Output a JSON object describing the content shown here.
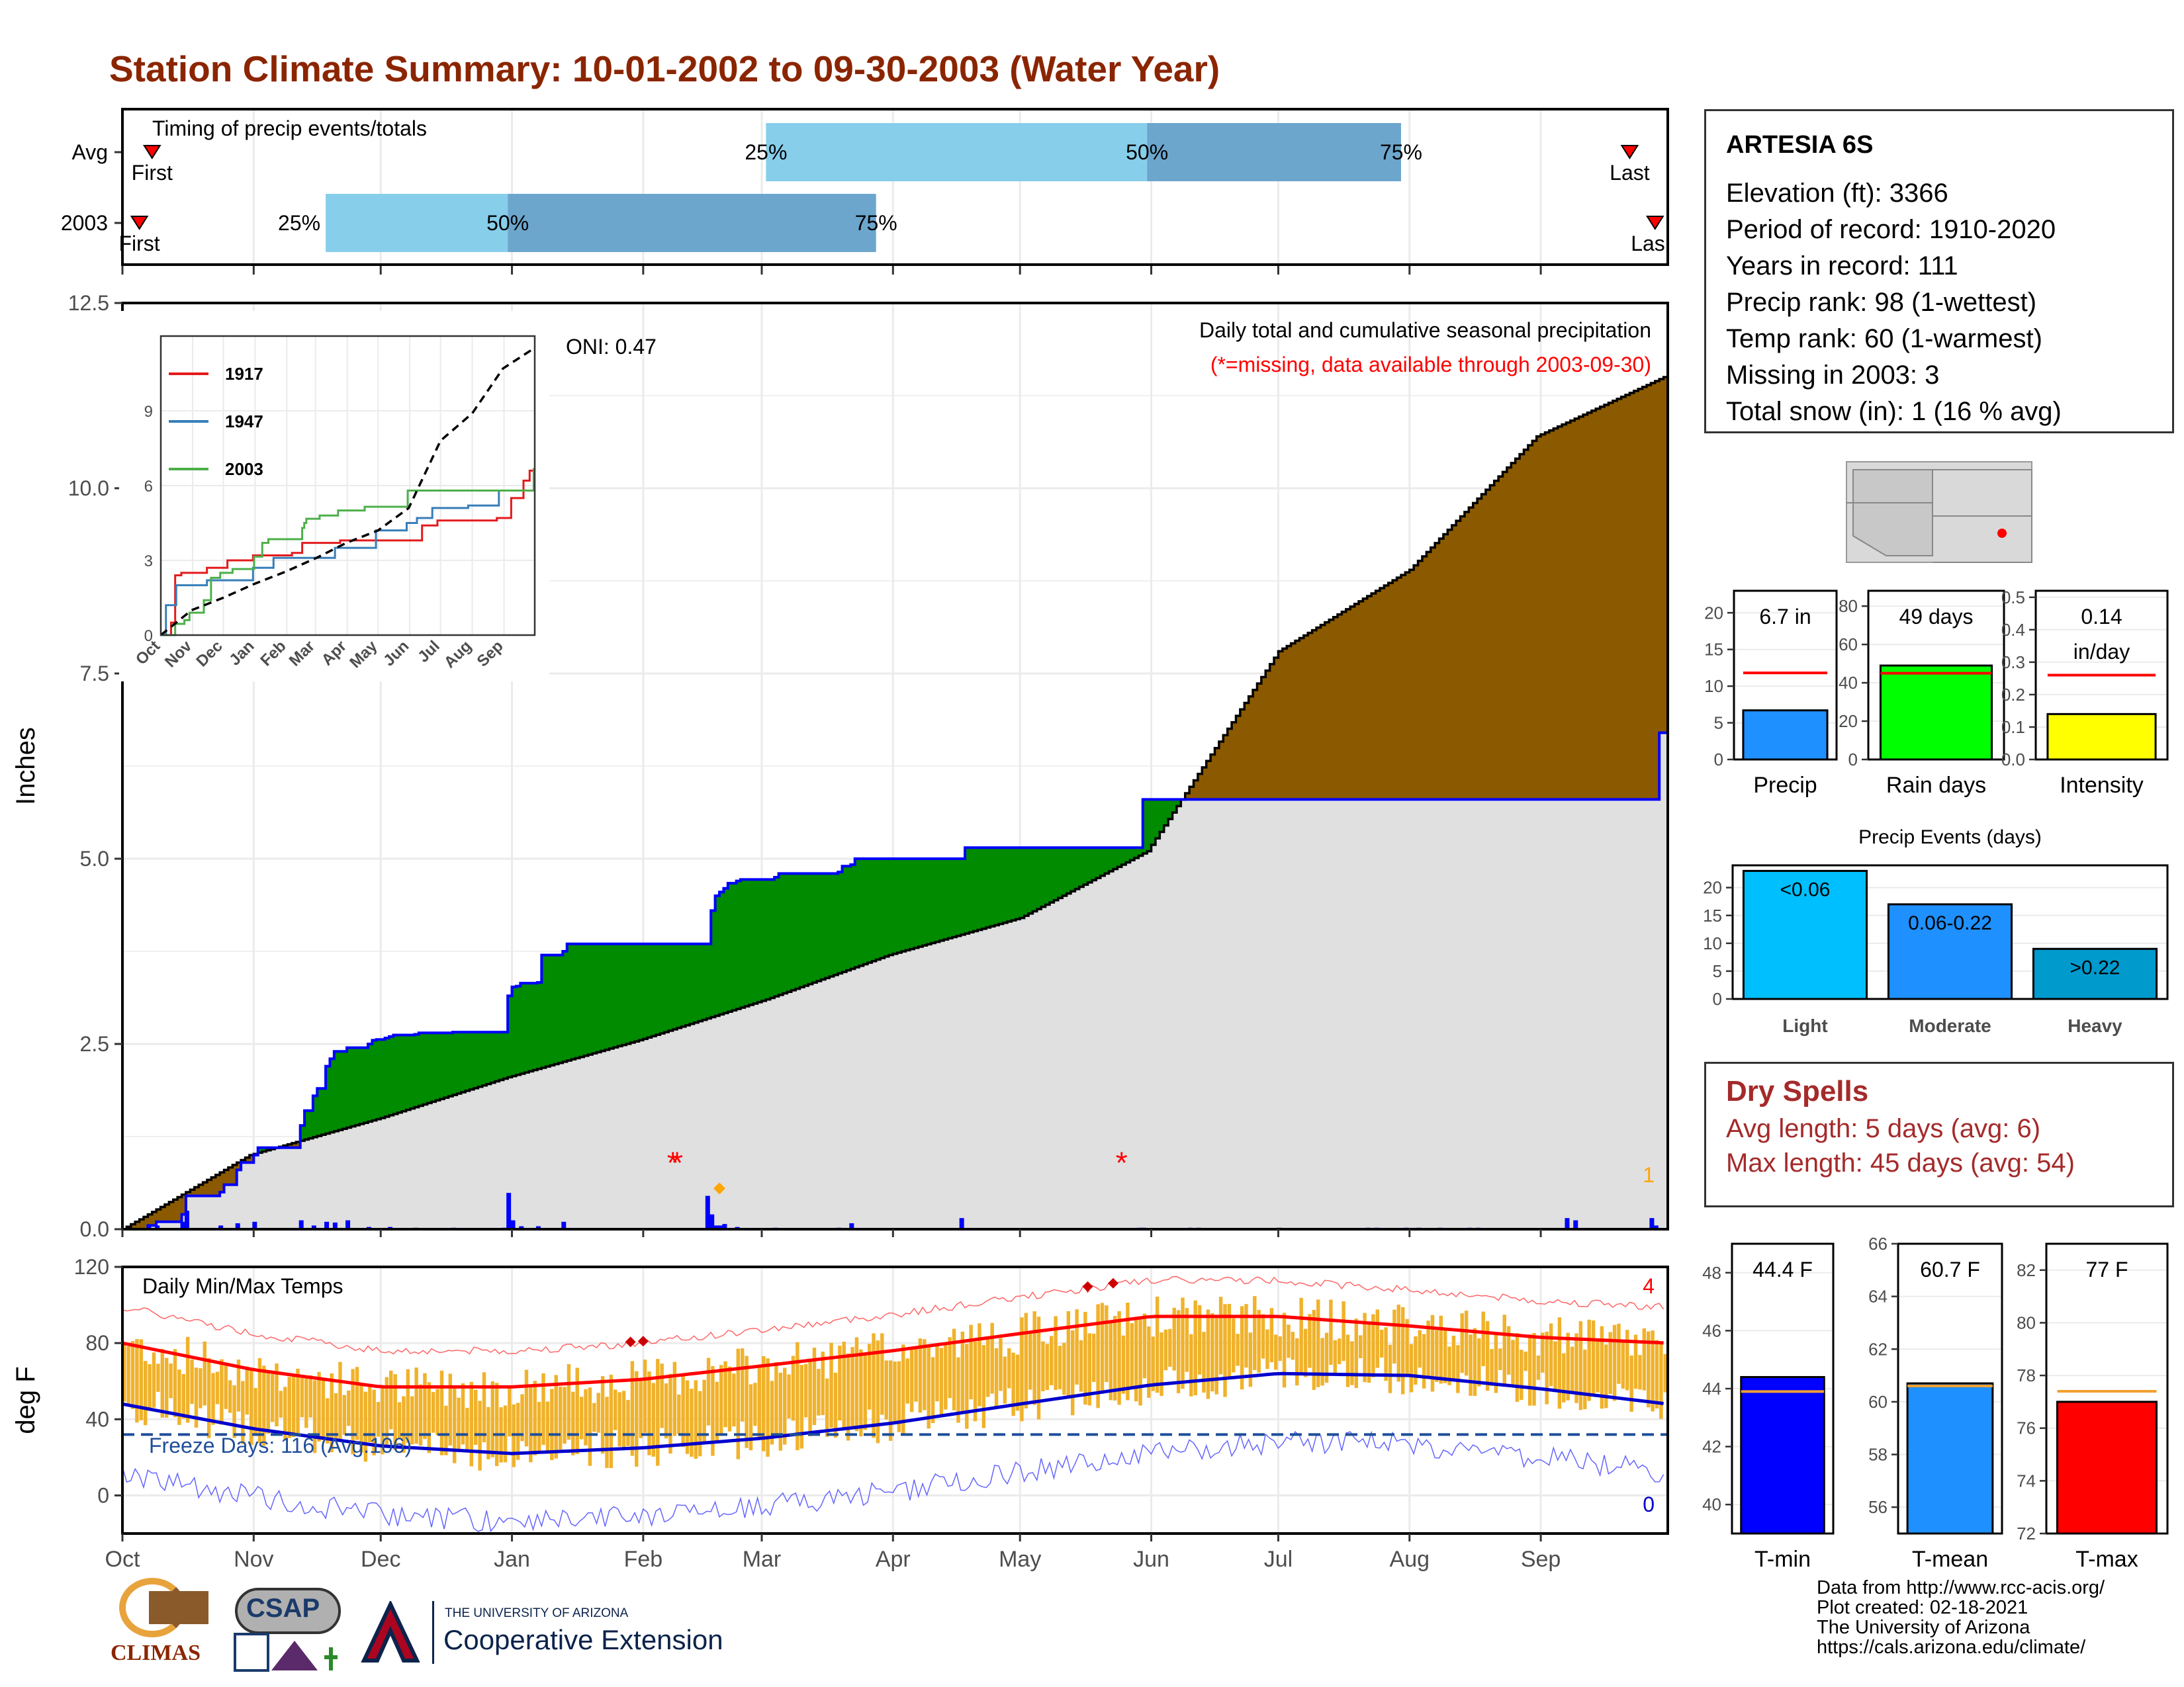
{
  "title": "Station Climate Summary: 10-01-2002 to 09-30-2003 (Water Year)",
  "station_info": {
    "name": "ARTESIA 6S",
    "lines": [
      "Elevation (ft): 3366",
      "Period of record: 1910-2020",
      "Years in record: 111",
      "Precip rank: 98 (1-wettest)",
      "Temp rank: 60 (1-warmest)",
      "Missing in 2003: 3",
      "Total snow (in): 1 (16 % avg)"
    ]
  },
  "dry_spells": {
    "heading": "Dry Spells",
    "avg_length": "Avg length: 5 days (avg: 6)",
    "max_length": "Max length: 45 days (avg: 54)"
  },
  "credits": [
    "Data from http://www.rcc-acis.org/",
    "Plot created: 02-18-2021",
    "The University of Arizona",
    "https://cals.arizona.edu/climate/"
  ],
  "logos": {
    "climas": "CLIMAS",
    "csap": "CSAP",
    "ua_small": "THE UNIVERSITY OF ARIZONA",
    "ua_big": "Cooperative Extension"
  },
  "colors": {
    "title": "#8B2500",
    "avg_precip": "#1E90FF",
    "light_blue": "#87CEEB",
    "steel_blue": "#6CA6CD",
    "green_surplus": "#008B00",
    "brown_deficit": "#8B5A00",
    "climatology_fill": "#E0E0E0",
    "daily_bar": "#0000FF",
    "temp_bar": "#F0B22B",
    "tmax_avg": "#FF0000",
    "tmin_avg": "#0000CD"
  },
  "chart_data": [
    {
      "id": "timing",
      "type": "bar",
      "title": "Timing of precip events/totals",
      "rows": [
        {
          "label": "Avg",
          "first": "Oct 8",
          "last": "Sep 22",
          "p25": "Mar 2",
          "p50": "May 31",
          "p75": "Jul 30"
        },
        {
          "label": "2003",
          "first": "Oct 5",
          "last": "Sep 28",
          "p25": "Nov 18",
          "p50": "Dec 31",
          "p75": "Mar 28"
        }
      ],
      "marker_labels": {
        "first": "First",
        "last": "Last",
        "last_truncated": "Las",
        "p25": "25%",
        "p50": "50%",
        "p75": "75%"
      }
    },
    {
      "id": "cumulative_precip",
      "type": "area",
      "ylabel": "Inches",
      "ylim": [
        0,
        12.5
      ],
      "yticks": [
        "0.0",
        "2.5",
        "5.0",
        "7.5",
        "10.0",
        "12.5"
      ],
      "x_months": [
        "Oct",
        "Nov",
        "Dec",
        "Jan",
        "Feb",
        "Mar",
        "Apr",
        "May",
        "Jun",
        "Jul",
        "Aug",
        "Sep"
      ],
      "annotation": "Daily total and cumulative seasonal precipitation",
      "missing_note": "(*=missing, data available through 2003-09-30)",
      "oni": "ONI: 0.47",
      "snow_count": "1",
      "series": [
        {
          "name": "2003",
          "x": [
            0,
            6,
            8,
            14,
            15,
            23,
            24,
            27,
            28,
            31,
            32,
            42,
            43,
            45,
            46,
            48,
            49,
            50,
            53,
            58,
            59,
            60,
            62,
            63,
            64,
            69,
            70,
            78,
            90,
            91,
            92,
            93,
            94,
            98,
            99,
            104,
            105,
            138,
            139,
            140,
            141,
            142,
            143,
            145,
            146,
            154,
            155,
            169,
            170,
            172,
            173,
            198,
            199,
            240,
            241,
            363,
            364
          ],
          "values": [
            0,
            0.05,
            0.1,
            0.2,
            0.45,
            0.5,
            0.6,
            0.8,
            0.9,
            1.0,
            1.1,
            1.4,
            1.6,
            1.8,
            1.9,
            2.2,
            2.3,
            2.4,
            2.45,
            2.5,
            2.55,
            2.56,
            2.58,
            2.6,
            2.62,
            2.63,
            2.65,
            2.66,
            2.66,
            3.15,
            3.27,
            3.28,
            3.32,
            3.33,
            3.7,
            3.75,
            3.85,
            3.85,
            4.3,
            4.5,
            4.55,
            4.6,
            4.67,
            4.7,
            4.72,
            4.75,
            4.8,
            4.82,
            4.9,
            4.92,
            5.0,
            5.0,
            5.15,
            5.15,
            5.8,
            6.7,
            6.7
          ]
        },
        {
          "name": "Avg",
          "x": [
            0,
            30,
            61,
            91,
            122,
            152,
            181,
            212,
            242,
            273,
            304,
            334,
            364
          ],
          "values": [
            0,
            1.0,
            1.5,
            2.05,
            2.55,
            3.1,
            3.7,
            4.2,
            5.1,
            7.8,
            8.9,
            10.7,
            11.5
          ]
        }
      ],
      "daily_precip": {
        "x": [
          6,
          8,
          14,
          15,
          23,
          27,
          31,
          42,
          45,
          48,
          50,
          53,
          58,
          63,
          69,
          78,
          90,
          91,
          92,
          94,
          98,
          104,
          138,
          139,
          140,
          141,
          142,
          145,
          154,
          169,
          172,
          198,
          240,
          241,
          252,
          254,
          273,
          294,
          296,
          303,
          306,
          311,
          318,
          320,
          341,
          343,
          361,
          362
        ],
        "values": [
          0.05,
          0.05,
          0.1,
          0.25,
          0.05,
          0.08,
          0.1,
          0.12,
          0.05,
          0.1,
          0.09,
          0.12,
          0.03,
          0.03,
          0.02,
          0.02,
          0.02,
          0.49,
          0.12,
          0.04,
          0.04,
          0.1,
          0.45,
          0.2,
          0.05,
          0.05,
          0.07,
          0.03,
          0.02,
          0.02,
          0.08,
          0.15,
          0.02,
          0.02,
          0.02,
          0.02,
          0.02,
          0.02,
          0.02,
          0.02,
          0.02,
          0.02,
          0.02,
          0.02,
          0.15,
          0.12,
          0.15,
          0.05
        ]
      },
      "missing_days": [
        130,
        131,
        236
      ],
      "missing_marker": "*"
    },
    {
      "id": "inset_cumulative",
      "type": "line",
      "ylim": [
        0,
        12
      ],
      "yticks": [
        "0",
        "3",
        "6",
        "9"
      ],
      "x_months": [
        "Oct",
        "Nov",
        "Dec",
        "Jan",
        "Feb",
        "Mar",
        "Apr",
        "May",
        "Jun",
        "Jul",
        "Aug",
        "Sep"
      ],
      "series": [
        {
          "name": "1917",
          "x": [
            0,
            10,
            14,
            20,
            35,
            45,
            65,
            90,
            128,
            138,
            155,
            175,
            205,
            245,
            255,
            268,
            270,
            271,
            285,
            328,
            342,
            352,
            354,
            360,
            364
          ],
          "values": [
            0,
            0.5,
            2.4,
            2.5,
            2.5,
            2.7,
            3.0,
            3.2,
            3.3,
            3.7,
            3.7,
            3.8,
            3.8,
            3.8,
            4.4,
            4.4,
            4.6,
            4.6,
            4.6,
            4.7,
            5.5,
            5.5,
            6.2,
            6.6,
            6.6
          ]
        },
        {
          "name": "1947",
          "x": [
            0,
            5,
            15,
            30,
            45,
            50,
            90,
            95,
            110,
            145,
            170,
            200,
            210,
            240,
            250,
            265,
            300,
            330,
            364
          ],
          "values": [
            0,
            1.2,
            2.0,
            2.0,
            2.2,
            2.2,
            2.7,
            2.7,
            3.1,
            3.1,
            3.5,
            3.5,
            4.2,
            4.5,
            4.7,
            5.1,
            5.2,
            5.8,
            6.4
          ]
        },
        {
          "name": "2003",
          "x": [
            0,
            14,
            23,
            28,
            42,
            49,
            58,
            70,
            91,
            99,
            105,
            138,
            140,
            142,
            155,
            173,
            199,
            241,
            364
          ],
          "values": [
            0,
            0.45,
            0.6,
            0.9,
            1.4,
            2.3,
            2.5,
            2.65,
            3.15,
            3.7,
            3.85,
            4.3,
            4.5,
            4.67,
            4.8,
            5.0,
            5.15,
            5.8,
            6.7
          ]
        },
        {
          "name": "Avg",
          "x": [
            0,
            30,
            61,
            91,
            122,
            152,
            181,
            212,
            242,
            273,
            304,
            334,
            364
          ],
          "values": [
            0,
            1.0,
            1.5,
            2.05,
            2.55,
            3.1,
            3.7,
            4.2,
            5.1,
            7.8,
            8.9,
            10.7,
            11.5
          ]
        }
      ]
    },
    {
      "id": "daily_temps",
      "type": "bar",
      "title": "Daily Min/Max Temps",
      "ylabel": "deg F",
      "ylim": [
        -20,
        120
      ],
      "yticks": [
        "0",
        "40",
        "80",
        "120"
      ],
      "x_months": [
        "Oct",
        "Nov",
        "Dec",
        "Jan",
        "Feb",
        "Mar",
        "Apr",
        "May",
        "Jun",
        "Jul",
        "Aug",
        "Sep"
      ],
      "freeze_line": 32,
      "freeze_label": "Freeze Days: 116 (Avg.106)",
      "record_high_count": "4",
      "record_low_count": "0",
      "avg_tmax_by_month": [
        80,
        66,
        57,
        57,
        61,
        68,
        76,
        85,
        94,
        94,
        89,
        83,
        80
      ],
      "avg_tmin_by_month": [
        48,
        35,
        26,
        22,
        25,
        30,
        38,
        48,
        58,
        64,
        63,
        56,
        48
      ],
      "record_high_days": [
        120,
        123,
        228,
        234
      ]
    },
    {
      "id": "precip_summary",
      "type": "bar",
      "categories": [
        "Precip",
        "Rain days",
        "Intensity"
      ],
      "values": [
        6.7,
        49,
        0.14
      ],
      "avg_values": [
        11.8,
        45,
        0.26
      ],
      "ylims": [
        [
          0,
          23
        ],
        [
          0,
          88
        ],
        [
          0,
          0.52
        ]
      ],
      "yticks": [
        [
          "0",
          "5",
          "10",
          "15",
          "20"
        ],
        [
          "0",
          "20",
          "40",
          "60",
          "80"
        ],
        [
          "0.0",
          "0.1",
          "0.2",
          "0.3",
          "0.4",
          "0.5"
        ]
      ],
      "labels": [
        "6.7 in",
        "49 days",
        "0.14",
        "in/day"
      ],
      "bar_colors": [
        "#1E90FF",
        "#00FF00",
        "#FFFF00"
      ]
    },
    {
      "id": "precip_events",
      "type": "bar",
      "title": "Precip Events (days)",
      "categories": [
        "Light",
        "Moderate",
        "Heavy"
      ],
      "values": [
        23,
        17,
        9
      ],
      "bar_labels": [
        "<0.06",
        "0.06-0.22",
        ">0.22"
      ],
      "ylim": [
        0,
        24
      ],
      "yticks": [
        "0",
        "5",
        "10",
        "15",
        "20"
      ]
    },
    {
      "id": "temp_summary",
      "type": "bar",
      "categories": [
        "T-min",
        "T-mean",
        "T-max"
      ],
      "values": [
        44.4,
        60.7,
        77
      ],
      "avg_values": [
        43.9,
        60.6,
        77.4
      ],
      "labels": [
        "44.4 F",
        "60.7 F",
        "77 F"
      ],
      "ylims": [
        [
          39,
          49
        ],
        [
          55,
          66
        ],
        [
          72,
          83
        ]
      ],
      "yticks": [
        [
          "40",
          "42",
          "44",
          "46",
          "48"
        ],
        [
          "56",
          "58",
          "60",
          "62",
          "64",
          "66"
        ],
        [
          "72",
          "74",
          "76",
          "78",
          "80",
          "82"
        ]
      ],
      "bar_colors": [
        "#0000FF",
        "#1E90FF",
        "#FF0000"
      ]
    }
  ]
}
